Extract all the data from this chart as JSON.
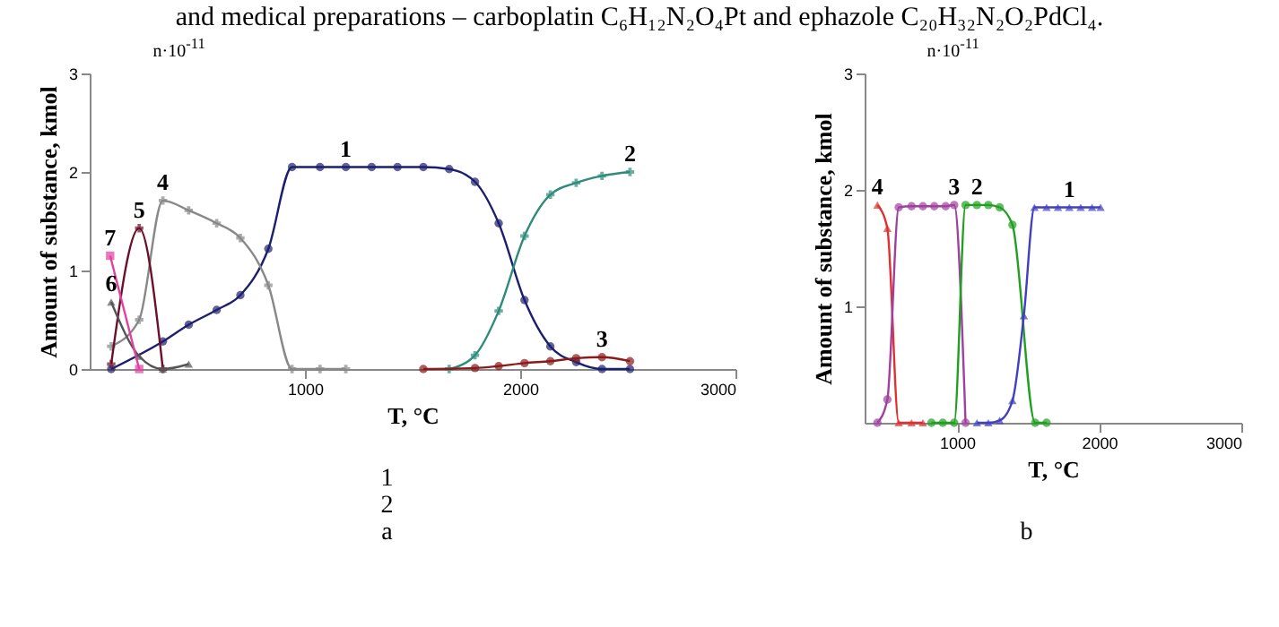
{
  "chart_data": [
    {
      "type": "line",
      "title": "and medical preparations – carboplatin C₆H₁₂N₂O₄Pt and ephazole C₂₀H₃₂N₂O₂PdCl₄.",
      "xlabel": "T, °C",
      "ylabel": "Amount of substance, kmol",
      "xlim": [
        0,
        3000
      ],
      "ylim": [
        0,
        3
      ],
      "xticks": [
        1000,
        2000,
        3000
      ],
      "yticks": [
        0,
        1,
        2,
        3
      ],
      "grid": false,
      "series": [
        {
          "name": "1",
          "color": "#1c1f6e",
          "marker": "circle",
          "x": [
            100,
            340,
            460,
            590,
            700,
            830,
            940,
            1070,
            1190,
            1310,
            1430,
            1550,
            1670,
            1790,
            1900,
            2020,
            2140,
            2260,
            2380,
            2510
          ],
          "values": [
            0,
            0.28,
            0.45,
            0.6,
            0.75,
            1.22,
            2.05,
            2.05,
            2.05,
            2.05,
            2.05,
            2.05,
            2.03,
            1.9,
            1.48,
            0.7,
            0.23,
            0.07,
            0,
            0
          ]
        },
        {
          "name": "2",
          "color": "#2e8b7a",
          "marker": "cross",
          "x": [
            1670,
            1790,
            1900,
            2020,
            2140,
            2260,
            2380,
            2510
          ],
          "values": [
            0,
            0.14,
            0.59,
            1.35,
            1.77,
            1.89,
            1.96,
            2.0
          ]
        },
        {
          "name": "3",
          "color": "#8b1a1a",
          "marker": "circle",
          "x": [
            1550,
            1790,
            1900,
            2020,
            2140,
            2260,
            2380,
            2510
          ],
          "values": [
            0,
            0.01,
            0.03,
            0.06,
            0.08,
            0.11,
            0.12,
            0.08
          ]
        },
        {
          "name": "4",
          "color": "#888888",
          "marker": "cross",
          "x": [
            100,
            230,
            340,
            460,
            590,
            700,
            830,
            940,
            1070,
            1190
          ],
          "values": [
            0.23,
            0.5,
            1.71,
            1.61,
            1.48,
            1.33,
            0.85,
            0,
            0,
            0
          ]
        },
        {
          "name": "5",
          "color": "#6b0f2a",
          "marker": "cross",
          "x": [
            100,
            230,
            340
          ],
          "values": [
            0.05,
            1.43,
            0
          ]
        },
        {
          "name": "6",
          "color": "#555555",
          "marker": "triangle",
          "x": [
            100,
            230,
            340,
            460
          ],
          "values": [
            0.68,
            0.13,
            0,
            0.05
          ]
        },
        {
          "name": "7",
          "color": "#e040a0",
          "marker": "square",
          "x": [
            95,
            230
          ],
          "values": [
            1.15,
            0
          ]
        }
      ],
      "annotations": [
        "n·10$^{-11}$",
        "1",
        "2",
        "a"
      ]
    },
    {
      "type": "line",
      "xlabel": "T, °C",
      "ylabel": "Amount of substance, kmol",
      "xlim": [
        350,
        3000
      ],
      "ylim": [
        0,
        3
      ],
      "xticks": [
        1000,
        2000,
        3000
      ],
      "yticks": [
        1,
        2,
        3
      ],
      "grid": false,
      "series": [
        {
          "name": "4",
          "color": "#e03030",
          "marker": "triangle",
          "x": [
            440,
            510,
            590,
            680,
            760
          ],
          "values": [
            1.87,
            1.67,
            0,
            0,
            0
          ]
        },
        {
          "name": "3",
          "color": "#a040a0",
          "marker": "circle",
          "x": [
            440,
            510,
            590,
            680,
            760,
            840,
            920,
            980,
            1060
          ],
          "values": [
            0,
            0.2,
            1.85,
            1.86,
            1.86,
            1.86,
            1.86,
            1.87,
            0
          ]
        },
        {
          "name": "2",
          "color": "#20a020",
          "marker": "circle",
          "x": [
            820,
            900,
            980,
            1060,
            1140,
            1220,
            1300,
            1390,
            1550,
            1630
          ],
          "values": [
            0,
            0,
            0,
            1.87,
            1.87,
            1.87,
            1.85,
            1.7,
            0,
            0
          ]
        },
        {
          "name": "1",
          "color": "#4040c0",
          "marker": "triangle",
          "x": [
            1140,
            1220,
            1300,
            1390,
            1470,
            1545,
            1630,
            1710,
            1790,
            1870,
            1950,
            2010
          ],
          "values": [
            0,
            0,
            0.02,
            0.19,
            0.92,
            1.85,
            1.85,
            1.85,
            1.85,
            1.85,
            1.85,
            1.85
          ]
        }
      ],
      "annotations": [
        "n·10$^{-11}$",
        "b"
      ]
    }
  ]
}
